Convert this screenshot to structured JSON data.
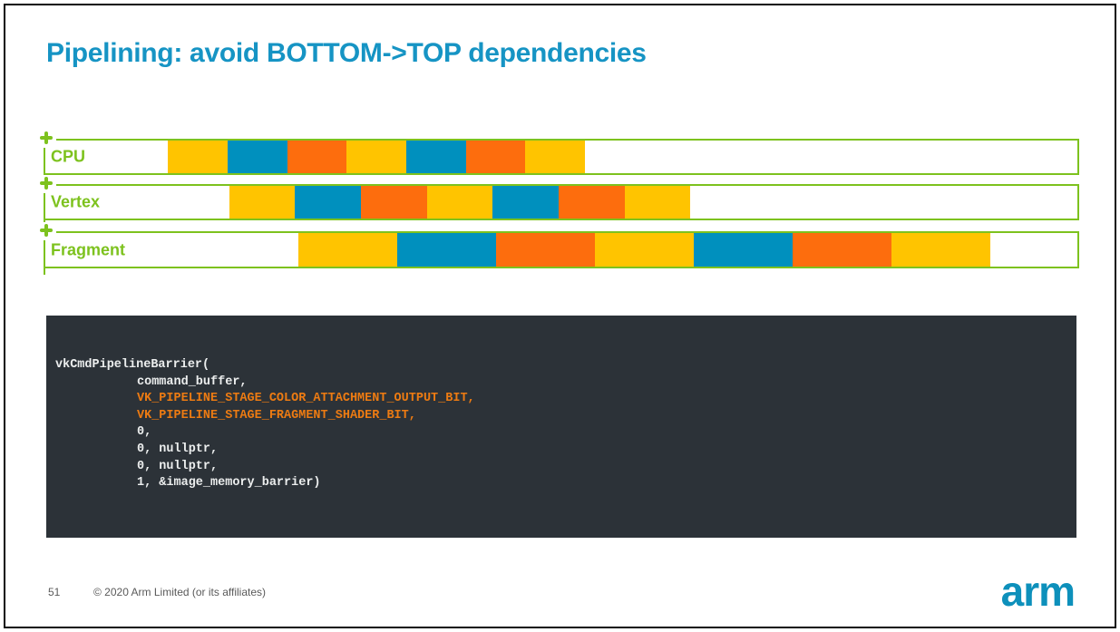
{
  "slide": {
    "title": "Pipelining: avoid BOTTOM->TOP dependencies",
    "page_number": "51",
    "copyright": "© 2020 Arm Limited (or its affiliates)",
    "logo_text": "arm"
  },
  "colors": {
    "title_blue": "#1694c4",
    "arm_blue": "#0d90bb",
    "green": "#7dc21e",
    "yellow": "#ffc400",
    "blue": "#0090be",
    "orange": "#fd6d0d",
    "code_bg": "#2c3238",
    "code_text": "#eceeee",
    "code_highlight": "#ed7b12",
    "footer_gray": "#5a5a5a"
  },
  "pipeline_rows": [
    {
      "label": "CPU",
      "segments": [
        {
          "color": "empty",
          "width": 11.9
        },
        {
          "color": "yellow",
          "width": 5.77
        },
        {
          "color": "blue",
          "width": 5.77
        },
        {
          "color": "orange",
          "width": 5.77
        },
        {
          "color": "yellow",
          "width": 5.77
        },
        {
          "color": "blue",
          "width": 5.77
        },
        {
          "color": "orange",
          "width": 5.77
        },
        {
          "color": "yellow",
          "width": 5.77
        }
      ]
    },
    {
      "label": "Vertex",
      "segments": [
        {
          "color": "empty",
          "width": 17.8
        },
        {
          "color": "yellow",
          "width": 6.39
        },
        {
          "color": "blue",
          "width": 6.39
        },
        {
          "color": "orange",
          "width": 6.39
        },
        {
          "color": "yellow",
          "width": 6.39
        },
        {
          "color": "blue",
          "width": 6.39
        },
        {
          "color": "orange",
          "width": 6.39
        },
        {
          "color": "yellow",
          "width": 6.39
        }
      ]
    },
    {
      "label": "Fragment",
      "segments": [
        {
          "color": "empty",
          "width": 24.5
        },
        {
          "color": "yellow",
          "width": 9.58
        },
        {
          "color": "blue",
          "width": 9.58
        },
        {
          "color": "orange",
          "width": 9.58
        },
        {
          "color": "yellow",
          "width": 9.58
        },
        {
          "color": "blue",
          "width": 9.58
        },
        {
          "color": "orange",
          "width": 9.58
        },
        {
          "color": "yellow",
          "width": 9.58
        }
      ]
    }
  ],
  "code_block": {
    "lines": [
      {
        "text": "vkCmdPipelineBarrier(",
        "highlight": false,
        "indent": false
      },
      {
        "text": "command_buffer,",
        "highlight": false,
        "indent": true
      },
      {
        "text": "VK_PIPELINE_STAGE_COLOR_ATTACHMENT_OUTPUT_BIT,",
        "highlight": true,
        "indent": true
      },
      {
        "text": "VK_PIPELINE_STAGE_FRAGMENT_SHADER_BIT,",
        "highlight": true,
        "indent": true
      },
      {
        "text": "0,",
        "highlight": false,
        "indent": true
      },
      {
        "text": "0, nullptr,",
        "highlight": false,
        "indent": true
      },
      {
        "text": "0, nullptr,",
        "highlight": false,
        "indent": true
      },
      {
        "text": "1, &image_memory_barrier)",
        "highlight": false,
        "indent": true
      }
    ]
  }
}
